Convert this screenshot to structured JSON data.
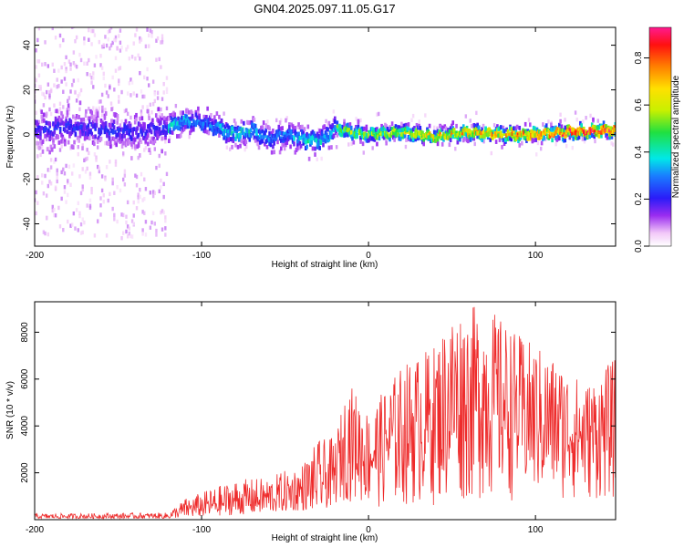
{
  "figure_title": "GN04.2025.097.11.05.G17",
  "chart_data": [
    {
      "type": "heatmap",
      "xlabel": "Height of straight line (km)",
      "ylabel": "Frequency (Hz)",
      "xlim": [
        -200,
        148
      ],
      "ylim": [
        -50,
        48
      ],
      "xticks": [
        -200,
        -100,
        0,
        100
      ],
      "yticks": [
        -40,
        -20,
        0,
        20,
        40
      ],
      "colorbar": {
        "label": "Normalized spectral amplitude",
        "range": [
          0,
          0.93
        ],
        "ticks": [
          0.0,
          0.2,
          0.4,
          0.6,
          0.8
        ]
      },
      "ridge": [
        {
          "x": -200,
          "y": 2
        },
        {
          "x": -180,
          "y": 3
        },
        {
          "x": -160,
          "y": 2
        },
        {
          "x": -140,
          "y": 1
        },
        {
          "x": -120,
          "y": 3
        },
        {
          "x": -110,
          "y": 6
        },
        {
          "x": -100,
          "y": 5
        },
        {
          "x": -90,
          "y": 3
        },
        {
          "x": -80,
          "y": 0
        },
        {
          "x": -70,
          "y": 2
        },
        {
          "x": -60,
          "y": -2
        },
        {
          "x": -50,
          "y": 0
        },
        {
          "x": -40,
          "y": -2
        },
        {
          "x": -30,
          "y": -3
        },
        {
          "x": -25,
          "y": -1
        },
        {
          "x": -20,
          "y": 3
        },
        {
          "x": -10,
          "y": 1
        },
        {
          "x": 0,
          "y": 0
        },
        {
          "x": 20,
          "y": 1
        },
        {
          "x": 40,
          "y": -1
        },
        {
          "x": 60,
          "y": 1
        },
        {
          "x": 80,
          "y": 0
        },
        {
          "x": 100,
          "y": 0
        },
        {
          "x": 120,
          "y": 1
        },
        {
          "x": 148,
          "y": 2
        }
      ]
    },
    {
      "type": "line",
      "xlabel": "Height of straight line (km)",
      "ylabel": "SNR (10 * v/v)",
      "xlim": [
        -200,
        148
      ],
      "ylim": [
        0,
        9300
      ],
      "xticks": [
        -200,
        -100,
        0,
        100
      ],
      "yticks": [
        2000,
        4000,
        6000,
        8000
      ],
      "color": "#ee2b2b",
      "envelope": [
        {
          "x": -200,
          "low": 50,
          "high": 250
        },
        {
          "x": -120,
          "low": 50,
          "high": 300
        },
        {
          "x": -110,
          "low": 100,
          "high": 900
        },
        {
          "x": -80,
          "low": 200,
          "high": 1700
        },
        {
          "x": -60,
          "low": 300,
          "high": 1800
        },
        {
          "x": -40,
          "low": 400,
          "high": 2400
        },
        {
          "x": -30,
          "low": 400,
          "high": 3400
        },
        {
          "x": -20,
          "low": 600,
          "high": 3500
        },
        {
          "x": -12,
          "low": 800,
          "high": 5900
        },
        {
          "x": 0,
          "low": 500,
          "high": 4600
        },
        {
          "x": 20,
          "low": 500,
          "high": 6600
        },
        {
          "x": 40,
          "low": 600,
          "high": 7500
        },
        {
          "x": 50,
          "low": 600,
          "high": 9000
        },
        {
          "x": 70,
          "low": 800,
          "high": 9200
        },
        {
          "x": 90,
          "low": 800,
          "high": 7900
        },
        {
          "x": 110,
          "low": 800,
          "high": 7000
        },
        {
          "x": 130,
          "low": 800,
          "high": 5800
        },
        {
          "x": 148,
          "low": 800,
          "high": 6900
        }
      ]
    }
  ]
}
